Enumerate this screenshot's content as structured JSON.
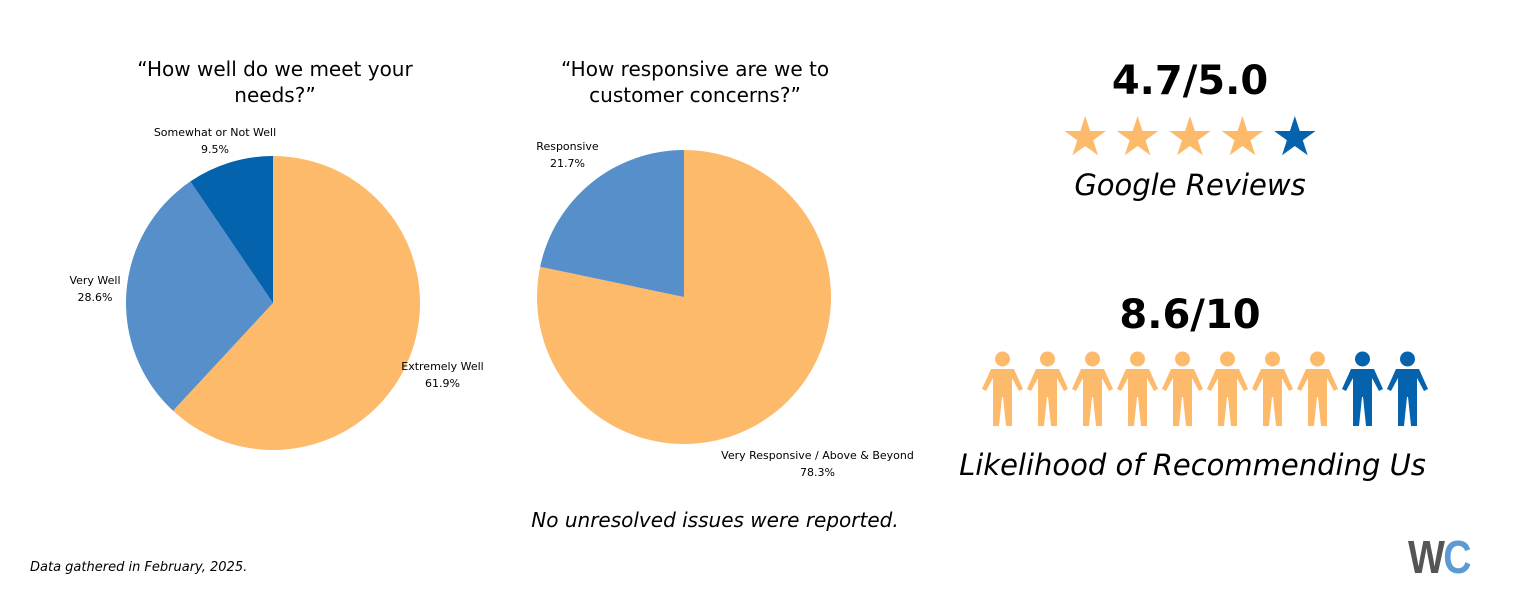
{
  "colors": {
    "orange": "#FDBA6B",
    "mid_blue": "#568FCA",
    "dark_blue": "#0563AE",
    "logo_gray": "#555555",
    "logo_blue": "#5B9BD5"
  },
  "chart_data": [
    {
      "type": "pie",
      "title": "“How well do we meet your needs?”",
      "slices": [
        {
          "label": "Extremely Well",
          "value": 61.9,
          "display": "61.9%",
          "color": "#FDBA6B"
        },
        {
          "label": "Very Well",
          "value": 28.6,
          "display": "28.6%",
          "color": "#568FCA"
        },
        {
          "label": "Somewhat or Not Well",
          "value": 9.5,
          "display": "9.5%",
          "color": "#0563AE"
        }
      ]
    },
    {
      "type": "pie",
      "title": "“How responsive are we to customer concerns?”",
      "slices": [
        {
          "label": "Very Responsive / Above & Beyond",
          "value": 78.3,
          "display": "78.3%",
          "color": "#FDBA6B"
        },
        {
          "label": "Responsive",
          "value": 21.7,
          "display": "21.7%",
          "color": "#568FCA"
        }
      ]
    }
  ],
  "note": "No unresolved issues were reported.",
  "footer": "Data gathered in February, 2025.",
  "reviews": {
    "score": "4.7/5.0",
    "label": "Google Reviews",
    "stars_total": 5,
    "stars_filled": 4
  },
  "recommend": {
    "score": "8.6/10",
    "label": "Likelihood of Recommending Us",
    "people_total": 10,
    "people_filled": 8
  },
  "logo": {
    "text": "WC"
  }
}
